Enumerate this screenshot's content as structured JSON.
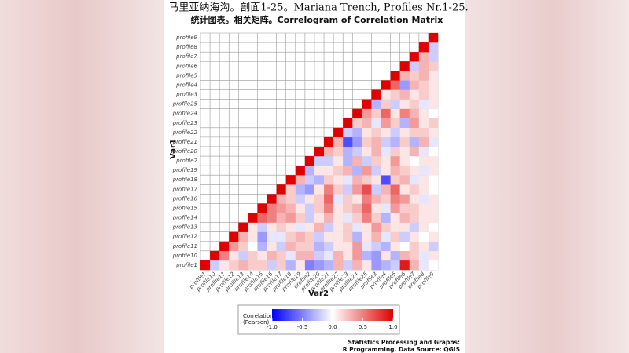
{
  "chart_data": {
    "type": "heatmap",
    "title": "马里亚纳海沟。剖面1-25。Mariana Trench, Profiles Nr.1-25.",
    "subtitle": "统计图表。相关矩阵。Correlogram of Correlation Matrix",
    "x_label": "Var2",
    "y_label": "Var1",
    "categories": [
      "profile1",
      "profile10",
      "profile11",
      "profile12",
      "profile13",
      "profile14",
      "profile15",
      "profile16",
      "profile17",
      "profile18",
      "profile19",
      "profile2",
      "profile20",
      "profile21",
      "profile22",
      "profile23",
      "profile24",
      "profile25",
      "profile3",
      "profile4",
      "profile5",
      "profile6",
      "profile7",
      "profile8",
      "profile9"
    ],
    "z": [
      [
        1,
        -0.2,
        0.1,
        0.2,
        0.3,
        0.2,
        0.2,
        -0.2,
        0.2,
        -0.3,
        0.1,
        -0.5,
        -0.4,
        -0.3,
        0.3,
        -0.2,
        0.3,
        0.1,
        -0.4,
        -0.3,
        -0.2,
        0.9,
        0.3,
        -0.1,
        0
      ],
      [
        1,
        0.5,
        0.1,
        -0.2,
        0.2,
        0.1,
        0.3,
        0.2,
        -0.1,
        0.3,
        0.3,
        -0.2,
        -0.1,
        0.3,
        0.1,
        0.4,
        -0.3,
        -0.4,
        0.1,
        -0.3,
        0.3,
        0.2,
        -0.1,
        0.1
      ],
      [
        1,
        0.4,
        0.2,
        0,
        -0.3,
        0.1,
        -0.2,
        0.3,
        0.2,
        0.2,
        -0.3,
        -0.2,
        0.1,
        0.1,
        0.4,
        -0.1,
        -0.2,
        -0.3,
        0.1,
        0,
        0.2,
        0.1,
        -0.2
      ],
      [
        1,
        0.3,
        0.1,
        -0.4,
        -0.1,
        -0.1,
        0.2,
        0.3,
        0.2,
        -0.2,
        0.1,
        0.1,
        0.2,
        -0.3,
        0.1,
        0.3,
        -0.1,
        0.2,
        -0.2,
        0.1,
        0,
        0.1
      ],
      [
        1,
        0.1,
        -0.2,
        0.1,
        0.2,
        0.1,
        -0.1,
        0.1,
        0.3,
        -0.2,
        0.1,
        0.2,
        -0.1,
        0.1,
        0.4,
        0.2,
        0.1,
        0.1,
        -0.2,
        0.1,
        0
      ],
      [
        1,
        0.6,
        0.5,
        0.3,
        0.4,
        0.2,
        -0.2,
        0.1,
        0.3,
        0.1,
        -0.1,
        0.2,
        0.5,
        0.2,
        -0.3,
        0.1,
        0.3,
        0.2,
        0.1,
        0.1
      ],
      [
        1,
        0.5,
        0.4,
        0.3,
        0.1,
        -0.2,
        0.2,
        0.5,
        0.1,
        0.2,
        0.3,
        0.6,
        0.1,
        -0.1,
        0.4,
        0.2,
        0.2,
        0.1,
        0.1
      ],
      [
        1,
        0.3,
        0.2,
        -0.2,
        0.1,
        0.2,
        0.6,
        -0.1,
        0.2,
        0.1,
        0.5,
        0.3,
        0.2,
        0.5,
        0.4,
        0.1,
        -0.1,
        0.1
      ],
      [
        1,
        0.2,
        -0.3,
        -0.4,
        0.1,
        0.5,
        0.2,
        -0.2,
        0.4,
        0.7,
        -0.2,
        0.3,
        0.6,
        0.1,
        0.2,
        0.1,
        0
      ],
      [
        1,
        0.3,
        -0.2,
        -0.3,
        0.2,
        0.1,
        -0.1,
        0.3,
        0.2,
        0.1,
        -0.7,
        0.2,
        0.3,
        -0.1,
        0.1,
        0
      ],
      [
        1,
        -0.3,
        0.1,
        0.1,
        0.2,
        0.3,
        -0.3,
        0.4,
        -0.2,
        0.1,
        0.3,
        0.2,
        0.1,
        -0.1,
        0.1
      ],
      [
        1,
        -0.2,
        -0.2,
        0.1,
        -0.3,
        0.3,
        -0.2,
        0.2,
        0.1,
        0.4,
        0.1,
        0,
        0.1,
        0.1
      ],
      [
        1,
        0.3,
        0.2,
        -0.3,
        -0.2,
        0.1,
        0.3,
        -0.1,
        0.2,
        0.1,
        0.3,
        -0.1,
        0
      ],
      [
        1,
        0.3,
        -0.7,
        -0.4,
        0.2,
        0.3,
        -0.2,
        -0.3,
        0.2,
        -0.3,
        0.3,
        -0.1
      ],
      [
        1,
        -0.2,
        -0.3,
        0.1,
        0.2,
        0.1,
        -0.2,
        0.1,
        0.2,
        0.2,
        0.1
      ],
      [
        1,
        0.2,
        0.3,
        -0.1,
        0.4,
        0.2,
        -0.3,
        0.4,
        0.1,
        0.2
      ],
      [
        1,
        0.4,
        0.2,
        0.6,
        0.1,
        0.5,
        0.3,
        0.1,
        0
      ],
      [
        1,
        -0.3,
        0.2,
        -0.2,
        0.1,
        0.2,
        -0.1,
        0.1
      ],
      [
        1,
        0.1,
        0.2,
        0.3,
        0.1,
        0.2,
        0.1
      ],
      [
        1,
        0.6,
        -0.4,
        0.3,
        0.2,
        0.1
      ],
      [
        1,
        0.3,
        0.2,
        0.3,
        0.1
      ],
      [
        1,
        -0.2,
        0.3,
        0.2
      ],
      [
        1,
        0.3,
        -0.2
      ],
      [
        1,
        -0.2
      ],
      [
        1
      ]
    ],
    "colors": {
      "low": "#0000ff",
      "mid": "#ffffff",
      "high": "#e00000"
    },
    "clim": [
      -1,
      1
    ],
    "grid": true,
    "legend_title": [
      "Correlation",
      "(Pearson)"
    ],
    "colorbar_ticks": [
      {
        "value": -1,
        "label": "-1.0"
      },
      -0.5,
      {
        "value": 0,
        "label": "0.0"
      },
      0.5,
      {
        "value": 1,
        "label": "1.0"
      }
    ],
    "footer": [
      "Statistics Processing and Graphs:",
      "R Programming. Data Source: QGIS"
    ]
  }
}
